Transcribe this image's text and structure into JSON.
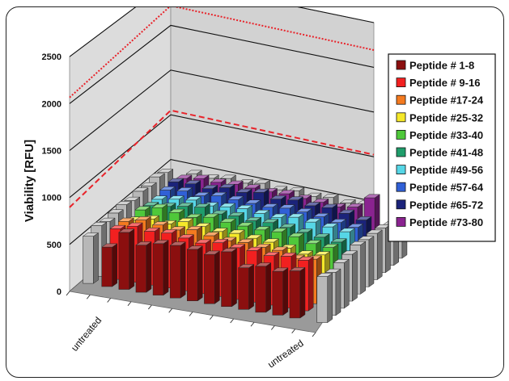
{
  "chart_data": {
    "type": "bar",
    "title": "",
    "ylabel": "Viability [RFU]",
    "ylim": [
      0,
      2500
    ],
    "yticks": [
      0,
      500,
      1000,
      1500,
      2000,
      2500
    ],
    "grid": true,
    "legend_position": "right",
    "x_labels": [
      "untreated",
      "untreated"
    ],
    "reference_lines": [
      {
        "style": "dotted",
        "value": 2220,
        "color": "#e8232a"
      },
      {
        "style": "dashed",
        "value": 1050,
        "color": "#e8232a"
      }
    ],
    "columns": 12,
    "control_color": "#b8b8b8",
    "series": [
      {
        "name": "Peptide # 1-8",
        "color": "#8b0f0f",
        "values": [
          360,
          520,
          430,
          470,
          480,
          470,
          450,
          500,
          380,
          420,
          400,
          430
        ]
      },
      {
        "name": "Peptide # 9-16",
        "color": "#f22020",
        "values": [
          470,
          520,
          500,
          510,
          490,
          470,
          500,
          480,
          480,
          460,
          480,
          470
        ]
      },
      {
        "name": "Peptide #17-24",
        "color": "#f47a1f",
        "values": [
          480,
          520,
          500,
          480,
          510,
          480,
          460,
          470,
          450,
          450,
          400,
          420
        ]
      },
      {
        "name": "Peptide #25-32",
        "color": "#f5e829",
        "values": [
          430,
          470,
          450,
          500,
          480,
          460,
          470,
          450,
          440,
          410,
          380,
          400
        ]
      },
      {
        "name": "Peptide #33-40",
        "color": "#4fc83a",
        "values": [
          470,
          520,
          500,
          480,
          510,
          490,
          480,
          470,
          480,
          460,
          420,
          410
        ]
      },
      {
        "name": "Peptide #41-48",
        "color": "#1f9d6b",
        "values": [
          450,
          470,
          500,
          520,
          480,
          490,
          470,
          480,
          460,
          440,
          420,
          400
        ]
      },
      {
        "name": "Peptide #49-56",
        "color": "#56d6e6",
        "values": [
          450,
          480,
          500,
          470,
          490,
          500,
          480,
          470,
          500,
          480,
          460,
          440
        ]
      },
      {
        "name": "Peptide #57-64",
        "color": "#3060d6",
        "values": [
          480,
          500,
          480,
          510,
          500,
          490,
          480,
          500,
          490,
          470,
          440,
          420
        ]
      },
      {
        "name": "Peptide #65-72",
        "color": "#1b237a",
        "values": [
          500,
          510,
          490,
          530,
          510,
          540,
          500,
          520,
          490,
          500,
          470,
          430
        ]
      },
      {
        "name": "Peptide #73-80",
        "color": "#8a2390",
        "values": [
          470,
          500,
          490,
          500,
          490,
          480,
          490,
          470,
          460,
          440,
          470,
          600
        ]
      }
    ],
    "controls_left": [
      430,
      470,
      450,
      470,
      490,
      470,
      500,
      490,
      520,
      500
    ],
    "controls_right": [
      420,
      400,
      430,
      450,
      480,
      470,
      470,
      460,
      430,
      440
    ],
    "controls_back": [
      440,
      420,
      450,
      430,
      460,
      420,
      440,
      410,
      430,
      400,
      420
    ]
  }
}
